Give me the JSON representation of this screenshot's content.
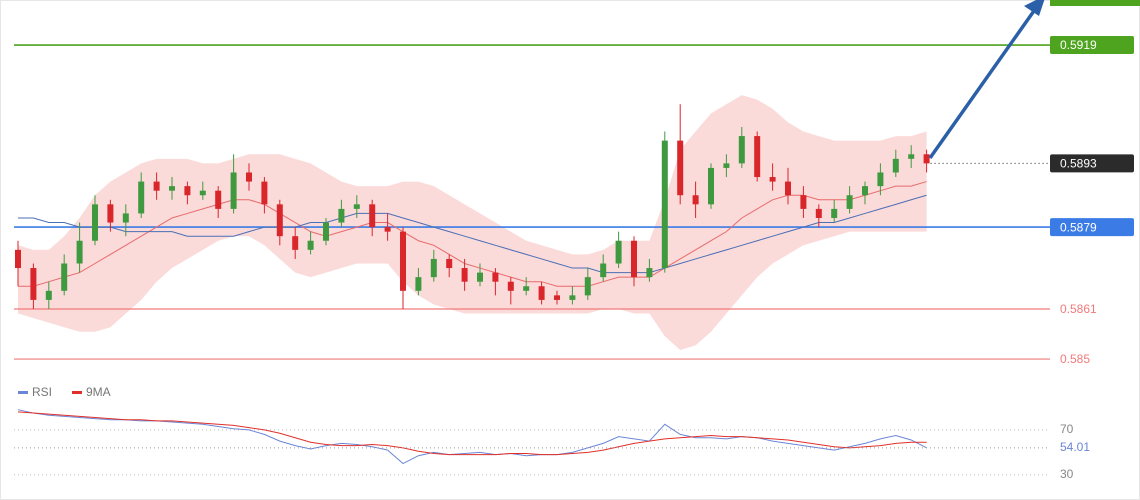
{
  "chart_data": {
    "type": "candlestick",
    "ylim": [
      0.58454,
      0.59289
    ],
    "up_color": "#3f9a3f",
    "down_color": "#d9262b",
    "candles": [
      {
        "o": 0.5874,
        "h": 0.5876,
        "l": 0.5866,
        "c": 0.587
      },
      {
        "o": 0.587,
        "h": 0.5871,
        "l": 0.5861,
        "c": 0.5863
      },
      {
        "o": 0.5863,
        "h": 0.5867,
        "l": 0.5861,
        "c": 0.5865
      },
      {
        "o": 0.5865,
        "h": 0.5873,
        "l": 0.5864,
        "c": 0.5871
      },
      {
        "o": 0.5871,
        "h": 0.588,
        "l": 0.5869,
        "c": 0.5876
      },
      {
        "o": 0.5876,
        "h": 0.5886,
        "l": 0.5875,
        "c": 0.5884
      },
      {
        "o": 0.5884,
        "h": 0.5885,
        "l": 0.5878,
        "c": 0.588
      },
      {
        "o": 0.588,
        "h": 0.5884,
        "l": 0.5877,
        "c": 0.5882
      },
      {
        "o": 0.5882,
        "h": 0.5891,
        "l": 0.5881,
        "c": 0.5889
      },
      {
        "o": 0.5889,
        "h": 0.5891,
        "l": 0.5885,
        "c": 0.5887
      },
      {
        "o": 0.5887,
        "h": 0.589,
        "l": 0.5885,
        "c": 0.5888
      },
      {
        "o": 0.5888,
        "h": 0.5889,
        "l": 0.5884,
        "c": 0.5886
      },
      {
        "o": 0.5886,
        "h": 0.5889,
        "l": 0.5885,
        "c": 0.5887
      },
      {
        "o": 0.5887,
        "h": 0.5888,
        "l": 0.5881,
        "c": 0.5883
      },
      {
        "o": 0.5883,
        "h": 0.5895,
        "l": 0.5882,
        "c": 0.5891
      },
      {
        "o": 0.5891,
        "h": 0.5893,
        "l": 0.5887,
        "c": 0.5889
      },
      {
        "o": 0.5889,
        "h": 0.589,
        "l": 0.5882,
        "c": 0.5884
      },
      {
        "o": 0.5884,
        "h": 0.5885,
        "l": 0.5875,
        "c": 0.5877
      },
      {
        "o": 0.5877,
        "h": 0.5879,
        "l": 0.5872,
        "c": 0.5874
      },
      {
        "o": 0.5874,
        "h": 0.5878,
        "l": 0.5873,
        "c": 0.5876
      },
      {
        "o": 0.5876,
        "h": 0.5881,
        "l": 0.5875,
        "c": 0.588
      },
      {
        "o": 0.588,
        "h": 0.5885,
        "l": 0.5879,
        "c": 0.5883
      },
      {
        "o": 0.5883,
        "h": 0.5886,
        "l": 0.5881,
        "c": 0.5884
      },
      {
        "o": 0.5884,
        "h": 0.5885,
        "l": 0.5877,
        "c": 0.5879
      },
      {
        "o": 0.5879,
        "h": 0.5882,
        "l": 0.5876,
        "c": 0.5878
      },
      {
        "o": 0.5878,
        "h": 0.5879,
        "l": 0.5861,
        "c": 0.5865
      },
      {
        "o": 0.5865,
        "h": 0.587,
        "l": 0.5864,
        "c": 0.5868
      },
      {
        "o": 0.5868,
        "h": 0.5874,
        "l": 0.5867,
        "c": 0.5872
      },
      {
        "o": 0.5872,
        "h": 0.5873,
        "l": 0.5868,
        "c": 0.587
      },
      {
        "o": 0.587,
        "h": 0.5872,
        "l": 0.5865,
        "c": 0.5867
      },
      {
        "o": 0.5867,
        "h": 0.5871,
        "l": 0.5866,
        "c": 0.5869
      },
      {
        "o": 0.5869,
        "h": 0.587,
        "l": 0.5864,
        "c": 0.5867
      },
      {
        "o": 0.5867,
        "h": 0.5868,
        "l": 0.5862,
        "c": 0.5865
      },
      {
        "o": 0.5865,
        "h": 0.5868,
        "l": 0.5864,
        "c": 0.5866
      },
      {
        "o": 0.5866,
        "h": 0.5867,
        "l": 0.5862,
        "c": 0.5863
      },
      {
        "o": 0.5864,
        "h": 0.5865,
        "l": 0.5862,
        "c": 0.5863
      },
      {
        "o": 0.5863,
        "h": 0.5866,
        "l": 0.5862,
        "c": 0.5864
      },
      {
        "o": 0.5864,
        "h": 0.587,
        "l": 0.5863,
        "c": 0.5868
      },
      {
        "o": 0.5868,
        "h": 0.5873,
        "l": 0.5867,
        "c": 0.5871
      },
      {
        "o": 0.5871,
        "h": 0.5878,
        "l": 0.587,
        "c": 0.5876
      },
      {
        "o": 0.5876,
        "h": 0.5877,
        "l": 0.5866,
        "c": 0.5868
      },
      {
        "o": 0.5868,
        "h": 0.5872,
        "l": 0.5867,
        "c": 0.587
      },
      {
        "o": 0.587,
        "h": 0.59,
        "l": 0.5869,
        "c": 0.5898
      },
      {
        "o": 0.5898,
        "h": 0.5906,
        "l": 0.5884,
        "c": 0.5886
      },
      {
        "o": 0.5886,
        "h": 0.5889,
        "l": 0.5881,
        "c": 0.5884
      },
      {
        "o": 0.5884,
        "h": 0.5893,
        "l": 0.5883,
        "c": 0.5892
      },
      {
        "o": 0.5892,
        "h": 0.5895,
        "l": 0.589,
        "c": 0.5893
      },
      {
        "o": 0.5893,
        "h": 0.5901,
        "l": 0.5892,
        "c": 0.5899
      },
      {
        "o": 0.5899,
        "h": 0.59,
        "l": 0.5889,
        "c": 0.589
      },
      {
        "o": 0.589,
        "h": 0.5893,
        "l": 0.5887,
        "c": 0.5889
      },
      {
        "o": 0.5889,
        "h": 0.5892,
        "l": 0.5884,
        "c": 0.5886
      },
      {
        "o": 0.5886,
        "h": 0.5888,
        "l": 0.5881,
        "c": 0.5883
      },
      {
        "o": 0.5883,
        "h": 0.5884,
        "l": 0.5879,
        "c": 0.5881
      },
      {
        "o": 0.5881,
        "h": 0.5885,
        "l": 0.588,
        "c": 0.5883
      },
      {
        "o": 0.5883,
        "h": 0.5888,
        "l": 0.5882,
        "c": 0.5886
      },
      {
        "o": 0.5886,
        "h": 0.5889,
        "l": 0.5884,
        "c": 0.5888
      },
      {
        "o": 0.5888,
        "h": 0.5893,
        "l": 0.5886,
        "c": 0.5891
      },
      {
        "o": 0.5891,
        "h": 0.5896,
        "l": 0.589,
        "c": 0.5894
      },
      {
        "o": 0.5894,
        "h": 0.5897,
        "l": 0.5892,
        "c": 0.5895
      },
      {
        "o": 0.5895,
        "h": 0.5896,
        "l": 0.5891,
        "c": 0.5893
      }
    ],
    "band": {
      "color": "#f9caca",
      "upper": [
        0.5875,
        0.5874,
        0.5874,
        0.5877,
        0.5881,
        0.5886,
        0.5889,
        0.5891,
        0.5893,
        0.5894,
        0.5894,
        0.5894,
        0.5893,
        0.5893,
        0.5894,
        0.5895,
        0.5895,
        0.5895,
        0.5894,
        0.5893,
        0.5891,
        0.5889,
        0.5888,
        0.5888,
        0.5888,
        0.5889,
        0.5889,
        0.5888,
        0.5886,
        0.5884,
        0.5882,
        0.588,
        0.5878,
        0.5876,
        0.5875,
        0.5874,
        0.5873,
        0.5873,
        0.5874,
        0.5876,
        0.5876,
        0.5876,
        0.5885,
        0.5896,
        0.59,
        0.5904,
        0.5906,
        0.5908,
        0.5907,
        0.5905,
        0.5902,
        0.59,
        0.5899,
        0.5898,
        0.5898,
        0.5898,
        0.5898,
        0.5899,
        0.5899,
        0.59
      ],
      "lower": [
        0.586,
        0.5859,
        0.5858,
        0.5857,
        0.5856,
        0.5856,
        0.5857,
        0.586,
        0.5863,
        0.5867,
        0.587,
        0.5872,
        0.5874,
        0.5876,
        0.5877,
        0.5877,
        0.5875,
        0.5872,
        0.5869,
        0.5868,
        0.5869,
        0.587,
        0.5871,
        0.5871,
        0.5871,
        0.5867,
        0.5864,
        0.5862,
        0.5861,
        0.586,
        0.586,
        0.586,
        0.586,
        0.586,
        0.586,
        0.586,
        0.586,
        0.586,
        0.5861,
        0.5861,
        0.586,
        0.586,
        0.5855,
        0.5852,
        0.5853,
        0.5856,
        0.586,
        0.5864,
        0.5868,
        0.5871,
        0.5873,
        0.5875,
        0.5876,
        0.5877,
        0.5878,
        0.5878,
        0.5878,
        0.5878,
        0.5878,
        0.5878
      ]
    },
    "lines": [
      {
        "color": "#e86a6a",
        "values": [
          0.5866,
          0.5866,
          0.5867,
          0.5868,
          0.5869,
          0.5871,
          0.5873,
          0.5875,
          0.5877,
          0.5879,
          0.5881,
          0.5882,
          0.5883,
          0.5884,
          0.5885,
          0.5885,
          0.5884,
          0.5882,
          0.588,
          0.5878,
          0.5877,
          0.5878,
          0.5879,
          0.588,
          0.588,
          0.5878,
          0.5876,
          0.5875,
          0.5873,
          0.5871,
          0.587,
          0.5869,
          0.5868,
          0.5867,
          0.5867,
          0.5866,
          0.5866,
          0.5866,
          0.5867,
          0.5868,
          0.5868,
          0.5868,
          0.587,
          0.5872,
          0.5874,
          0.5876,
          0.5878,
          0.5881,
          0.5883,
          0.5885,
          0.5886,
          0.5886,
          0.5885,
          0.5885,
          0.5885,
          0.5886,
          0.5887,
          0.5888,
          0.5888,
          0.5889
        ]
      },
      {
        "color": "#4a6fb5",
        "values": [
          0.5881,
          0.5881,
          0.588,
          0.588,
          0.5879,
          0.5879,
          0.5879,
          0.5878,
          0.5878,
          0.5878,
          0.5878,
          0.5877,
          0.5877,
          0.5877,
          0.5877,
          0.5878,
          0.5879,
          0.5879,
          0.5879,
          0.588,
          0.588,
          0.5881,
          0.5882,
          0.5882,
          0.5882,
          0.5881,
          0.588,
          0.5879,
          0.5878,
          0.5877,
          0.5876,
          0.5875,
          0.5874,
          0.5873,
          0.5872,
          0.5871,
          0.587,
          0.587,
          0.5869,
          0.5869,
          0.5869,
          0.5869,
          0.587,
          0.5871,
          0.5872,
          0.5873,
          0.5874,
          0.5875,
          0.5876,
          0.5877,
          0.5878,
          0.5879,
          0.588,
          0.588,
          0.5881,
          0.5882,
          0.5883,
          0.5884,
          0.5885,
          0.5886
        ]
      }
    ],
    "levels": [
      {
        "value": 0.5919,
        "color": "#4ea41f",
        "boxed": true
      },
      {
        "value": 0.5893,
        "color": "#2b2b2b",
        "boxed": true,
        "dotted": true
      },
      {
        "value": 0.5879,
        "color": "#3b7be6",
        "boxed": true
      },
      {
        "value": 0.5861,
        "color": "#f07a7a",
        "boxed": false
      },
      {
        "value": 0.585,
        "color": "#f07a7a",
        "boxed": false
      }
    ],
    "rsi": {
      "ylim": [
        20,
        110
      ],
      "yticks": [
        70,
        30
      ],
      "series": [
        {
          "name": "RSI",
          "color": "#6b86d6",
          "values": [
            88,
            85,
            83,
            82,
            81,
            80,
            79,
            79,
            78,
            78,
            77,
            76,
            75,
            73,
            71,
            70,
            66,
            60,
            56,
            53,
            56,
            58,
            57,
            55,
            52,
            40,
            47,
            50,
            48,
            49,
            50,
            48,
            49,
            47,
            48,
            48,
            50,
            54,
            58,
            64,
            62,
            60,
            75,
            66,
            63,
            63,
            62,
            64,
            63,
            60,
            58,
            56,
            54,
            52,
            55,
            58,
            62,
            65,
            61,
            54.01
          ]
        },
        {
          "name": "9MA",
          "color": "#e0302a",
          "values": [
            86,
            85,
            84,
            83,
            82,
            81,
            80,
            79,
            79,
            78,
            78,
            77,
            76,
            75,
            74,
            72,
            70,
            67,
            63,
            59,
            57,
            56,
            56,
            57,
            56,
            54,
            51,
            49,
            48,
            48,
            48,
            48,
            49,
            49,
            48,
            48,
            49,
            50,
            52,
            55,
            58,
            60,
            62,
            63,
            64,
            65,
            64,
            64,
            63,
            62,
            61,
            59,
            57,
            55,
            54,
            55,
            56,
            58,
            59,
            59
          ]
        }
      ]
    }
  }
}
